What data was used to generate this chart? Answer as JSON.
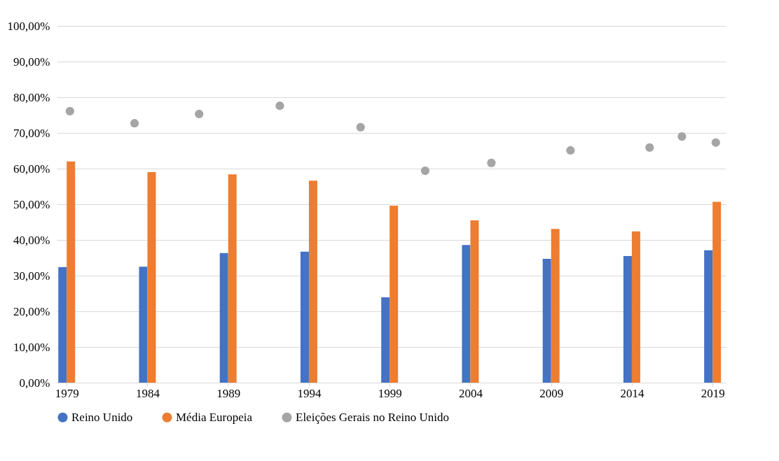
{
  "chart_data": {
    "type": "bar",
    "x": [
      1979,
      1984,
      1989,
      1994,
      1999,
      2004,
      2009,
      2014,
      2019
    ],
    "series": [
      {
        "name": "Reino Unido",
        "color": "#4472c4",
        "values": [
          32.4,
          32.5,
          36.3,
          36.7,
          23.9,
          38.6,
          34.7,
          35.5,
          37.1
        ]
      },
      {
        "name": "Média Europeia",
        "color": "#ed7d31",
        "values": [
          62.0,
          59.0,
          58.4,
          56.6,
          49.6,
          45.5,
          43.1,
          42.4,
          50.7
        ]
      },
      {
        "name": "Eleições Gerais no Reino Unido",
        "color": "#a5a5a5",
        "type": "scatter",
        "marker": "circle",
        "x": [
          1979.2,
          1983.2,
          1987.2,
          1992.2,
          1997.2,
          2001.2,
          2005.3,
          2010.2,
          2015.1,
          2017.1,
          2019.2
        ],
        "values": [
          76.1,
          72.7,
          75.3,
          77.6,
          71.6,
          59.4,
          61.6,
          65.1,
          65.9,
          69.0,
          67.3
        ]
      }
    ],
    "xlim": [
      1978.6,
      2019.6
    ],
    "xticks": [
      1979,
      1984,
      1989,
      1994,
      1999,
      2004,
      2009,
      2014,
      2019
    ],
    "ylim": [
      0,
      100
    ],
    "yticks": [
      {
        "value": 0,
        "label": "0,00%"
      },
      {
        "value": 10,
        "label": "10,00%"
      },
      {
        "value": 20,
        "label": "20,00%"
      },
      {
        "value": 30,
        "label": "30,00%"
      },
      {
        "value": 40,
        "label": "40,00%"
      },
      {
        "value": 50,
        "label": "50,00%"
      },
      {
        "value": 60,
        "label": "60,00%"
      },
      {
        "value": 70,
        "label": "70,00%"
      },
      {
        "value": 80,
        "label": "80,00%"
      },
      {
        "value": 90,
        "label": "90,00%"
      },
      {
        "value": 100,
        "label": "100,00%"
      }
    ],
    "grid": "y",
    "legend": "bottom"
  }
}
